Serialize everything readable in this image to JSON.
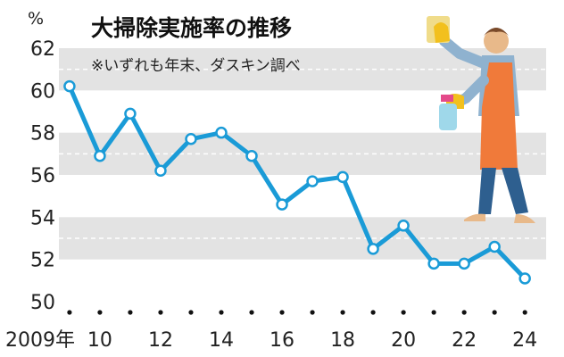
{
  "chart_data": {
    "type": "line",
    "title": "大掃除実施率の推移",
    "subtitle": "※いずれも年末、ダスキン調べ",
    "ylabel": "%",
    "ylim": [
      50,
      62
    ],
    "yticks": [
      "62",
      "60",
      "58",
      "56",
      "54",
      "52",
      "50"
    ],
    "x": [
      2009,
      2010,
      2011,
      2012,
      2013,
      2014,
      2015,
      2016,
      2017,
      2018,
      2019,
      2020,
      2021,
      2022,
      2023,
      2024
    ],
    "xtick_labels": [
      {
        "x": 2009,
        "label": "2009年"
      },
      {
        "x": 2010,
        "label": "10"
      },
      {
        "x": 2012,
        "label": "12"
      },
      {
        "x": 2014,
        "label": "14"
      },
      {
        "x": 2016,
        "label": "16"
      },
      {
        "x": 2018,
        "label": "18"
      },
      {
        "x": 2020,
        "label": "20"
      },
      {
        "x": 2022,
        "label": "22"
      },
      {
        "x": 2024,
        "label": "24"
      }
    ],
    "values": [
      60.2,
      56.9,
      58.9,
      56.2,
      57.7,
      58.0,
      56.9,
      54.6,
      55.7,
      55.9,
      52.5,
      53.6,
      51.8,
      51.8,
      52.6,
      51.1
    ],
    "line_color": "#1a9bd7",
    "band_color": "#e3e3e3",
    "marker_fill": "#ffffff",
    "grid": true,
    "illustration": "cleaning-person-icon"
  }
}
